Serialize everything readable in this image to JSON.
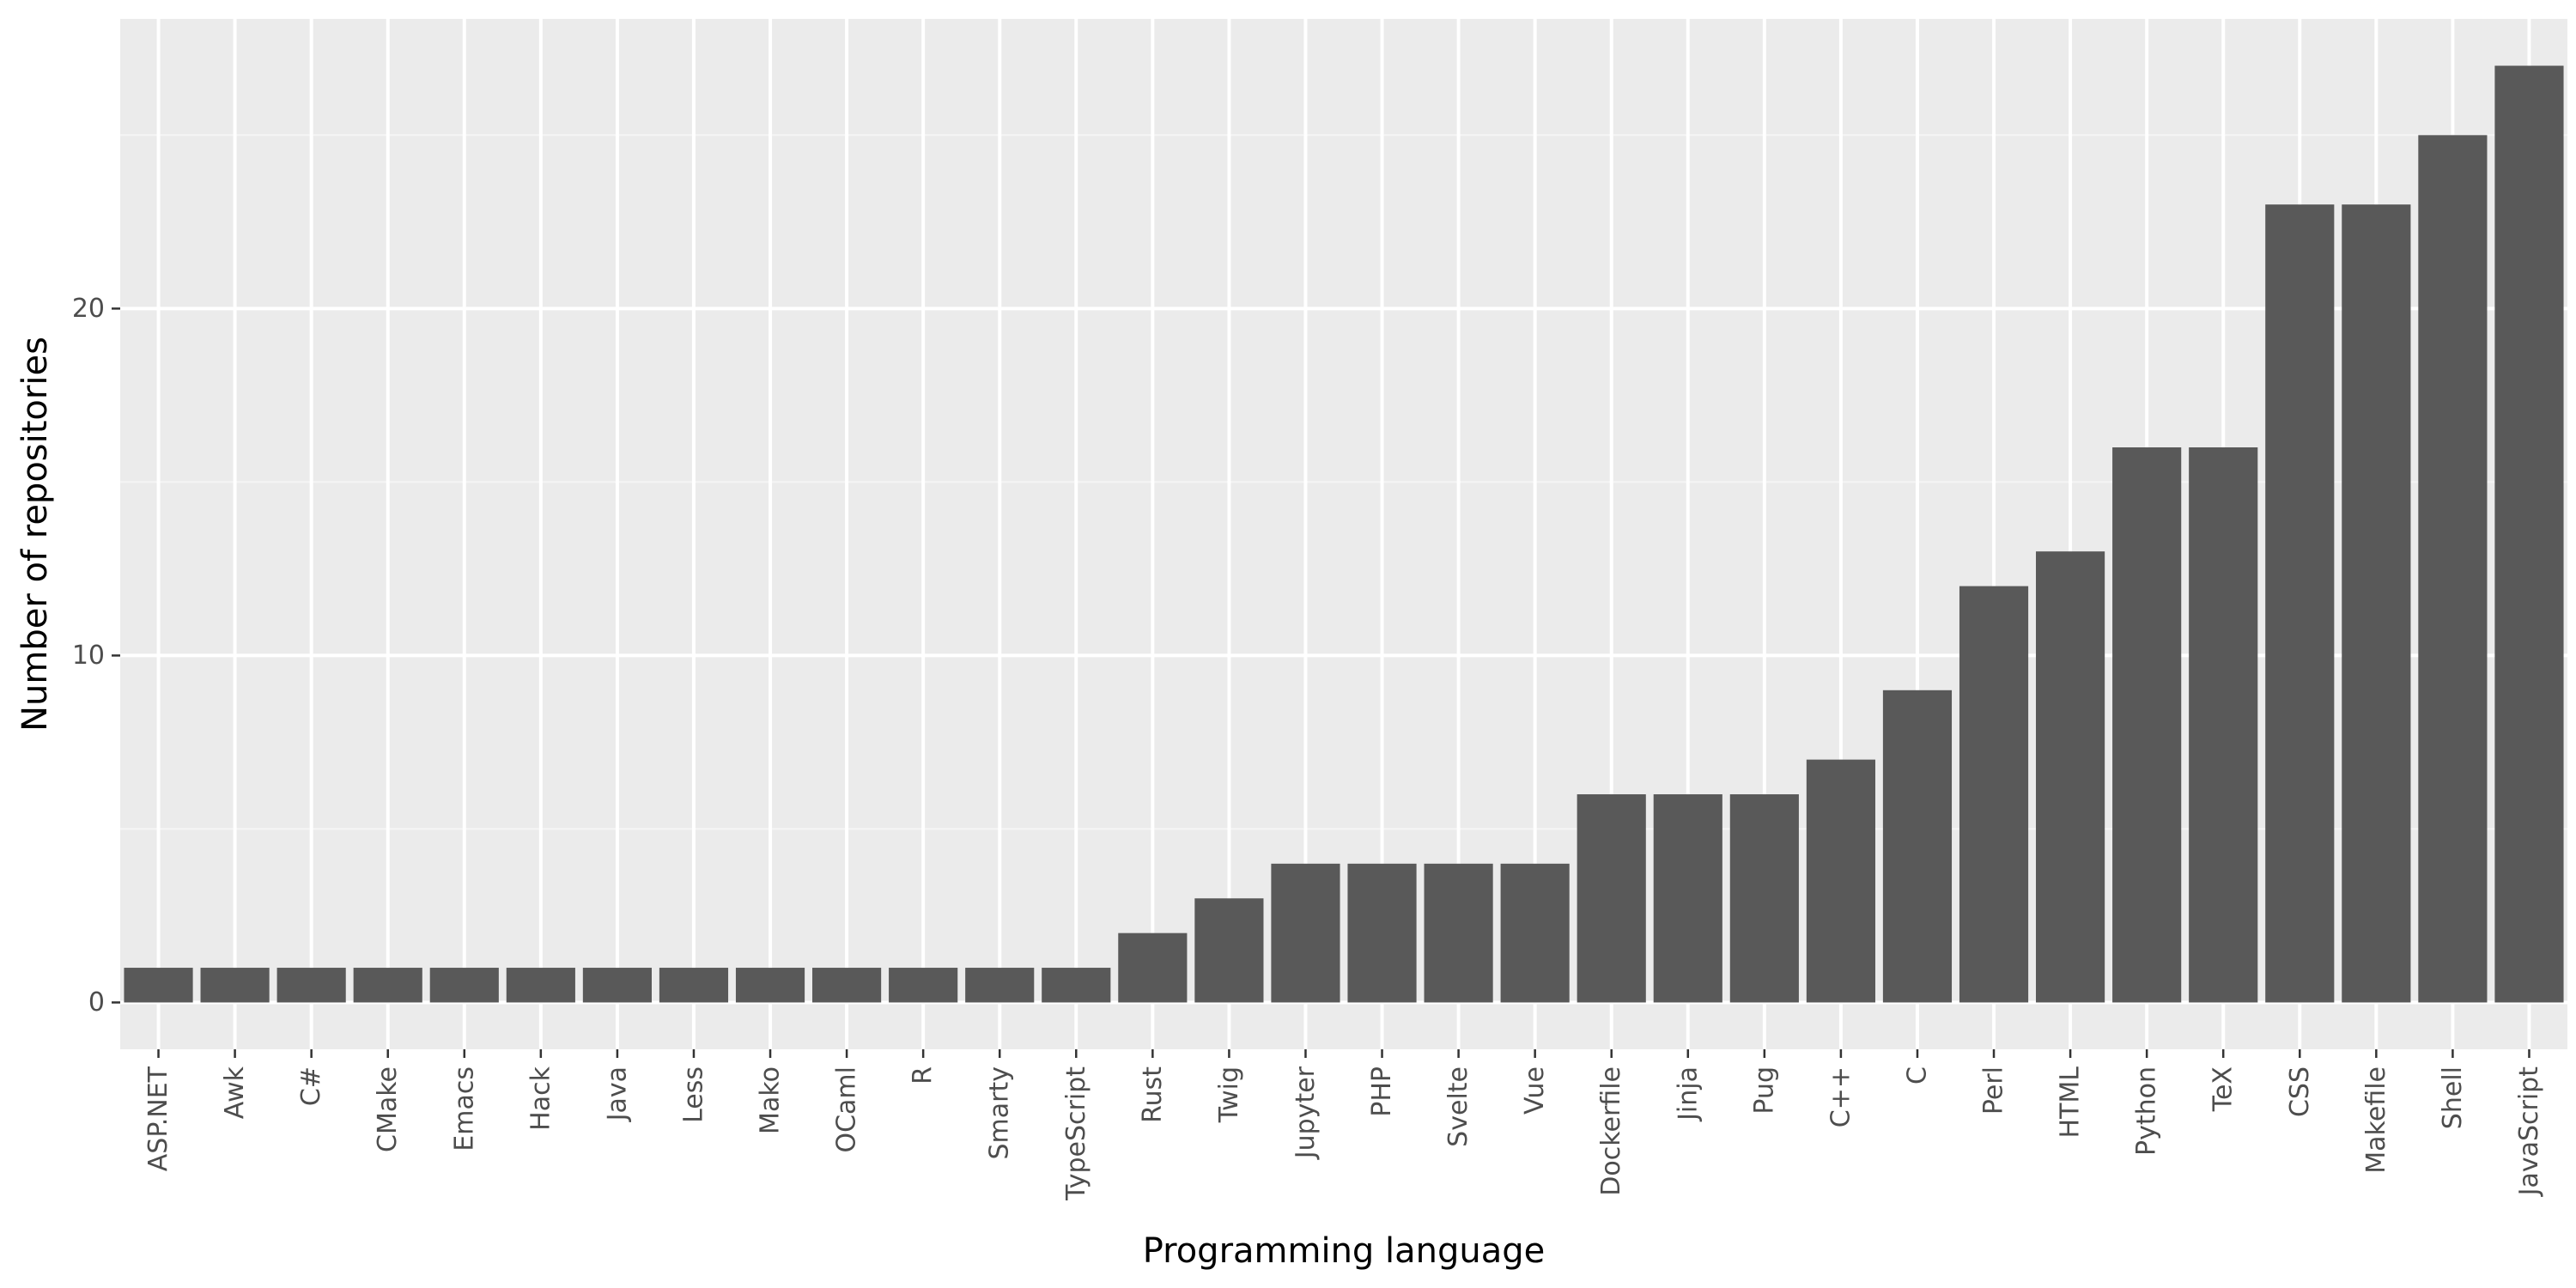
{
  "chart_data": {
    "type": "bar",
    "title": "",
    "xlabel": "Programming language",
    "ylabel": "Number of repositories",
    "categories": [
      "ASP.NET",
      "Awk",
      "C#",
      "CMake",
      "Emacs",
      "Hack",
      "Java",
      "Less",
      "Mako",
      "OCaml",
      "R",
      "Smarty",
      "TypeScript",
      "Rust",
      "Twig",
      "Jupyter",
      "PHP",
      "Svelte",
      "Vue",
      "Dockerfile",
      "Jinja",
      "Pug",
      "C++",
      "C",
      "Perl",
      "HTML",
      "Python",
      "TeX",
      "CSS",
      "Makefile",
      "Shell",
      "JavaScript"
    ],
    "values": [
      1,
      1,
      1,
      1,
      1,
      1,
      1,
      1,
      1,
      1,
      1,
      1,
      1,
      2,
      3,
      4,
      4,
      4,
      4,
      6,
      6,
      6,
      7,
      9,
      12,
      13,
      16,
      16,
      23,
      23,
      25,
      27
    ],
    "ylim": [
      -1.35,
      28.35
    ],
    "yticks": [
      0,
      10,
      20
    ],
    "ytick_labels": [
      "0",
      "10",
      "20"
    ],
    "grid": true,
    "legend": "none",
    "colors": {
      "bar": "#595959",
      "panel": "#ebebeb",
      "grid_major": "#ffffff",
      "grid_minor": "#f5f5f5",
      "tick": "#333333"
    }
  }
}
